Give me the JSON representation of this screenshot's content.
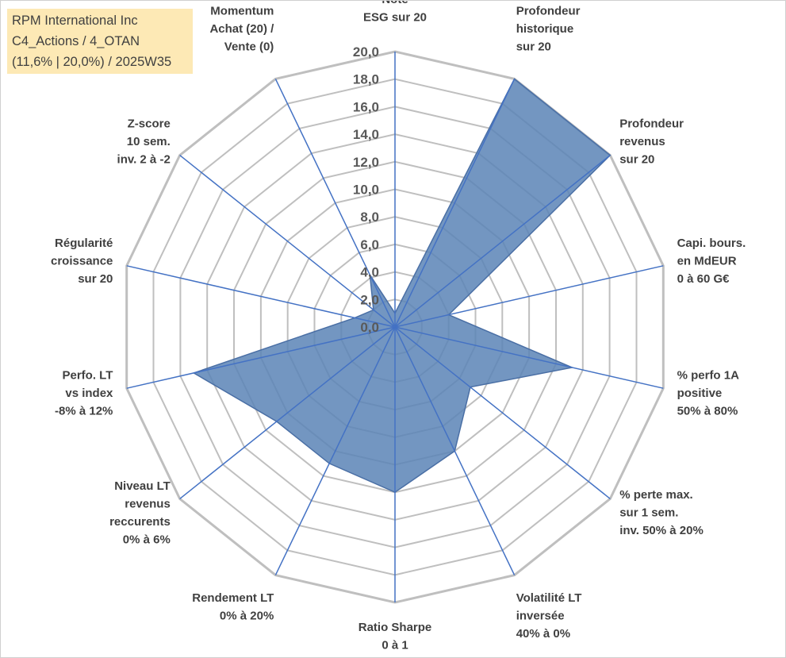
{
  "info_box": {
    "line1": "RPM International Inc",
    "line2": "C4_Actions / 4_OTAN",
    "line3": "(11,6% | 20,0%) / 2025W35"
  },
  "colors": {
    "grid": "#bfbfbf",
    "spoke": "#4472c4",
    "fill": "#5b84b6",
    "fill_stroke": "#4a6fa5",
    "info_box_bg": "#fde9b5"
  },
  "chart_data": {
    "type": "radar",
    "title": "",
    "rlim": [
      0,
      20
    ],
    "ticks": [
      "0,0",
      "2,0",
      "4,0",
      "6,0",
      "8,0",
      "10,0",
      "12,0",
      "14,0",
      "16,0",
      "18,0",
      "20,0"
    ],
    "grid": true,
    "axes": [
      [
        "Note",
        "ESG sur 20"
      ],
      [
        "Profondeur",
        "historique",
        "sur 20"
      ],
      [
        "Profondeur",
        "revenus",
        "sur 20"
      ],
      [
        "Capi. bours.",
        "en MdEUR",
        "0 à 60 G€"
      ],
      [
        "% perfo 1A",
        "positive",
        "50% à 80%"
      ],
      [
        "% perte max.",
        "sur 1 sem.",
        "inv. 50% à 20%"
      ],
      [
        "Volatilité LT",
        "inversée",
        "40% à 0%"
      ],
      [
        "Ratio Sharpe",
        "0 à 1"
      ],
      [
        "Rendement LT",
        "0% à 20%"
      ],
      [
        "Niveau LT",
        "revenus",
        "reccurents",
        "0% à 6%"
      ],
      [
        "Perfo. LT",
        "vs index",
        "-8% à 12%"
      ],
      [
        "Régularité",
        "croissance",
        "sur 20"
      ],
      [
        "Z-score",
        "10 sem.",
        "inv. 2 à -2"
      ],
      [
        "Momentum",
        "Achat (20) /",
        "Vente (0)"
      ]
    ],
    "series": [
      {
        "values": [
          1.0,
          20.0,
          20.0,
          4.0,
          13.2,
          7.0,
          10.0,
          12.0,
          11.0,
          11.0,
          15.0,
          3.0,
          2.0,
          4.2
        ]
      }
    ]
  }
}
